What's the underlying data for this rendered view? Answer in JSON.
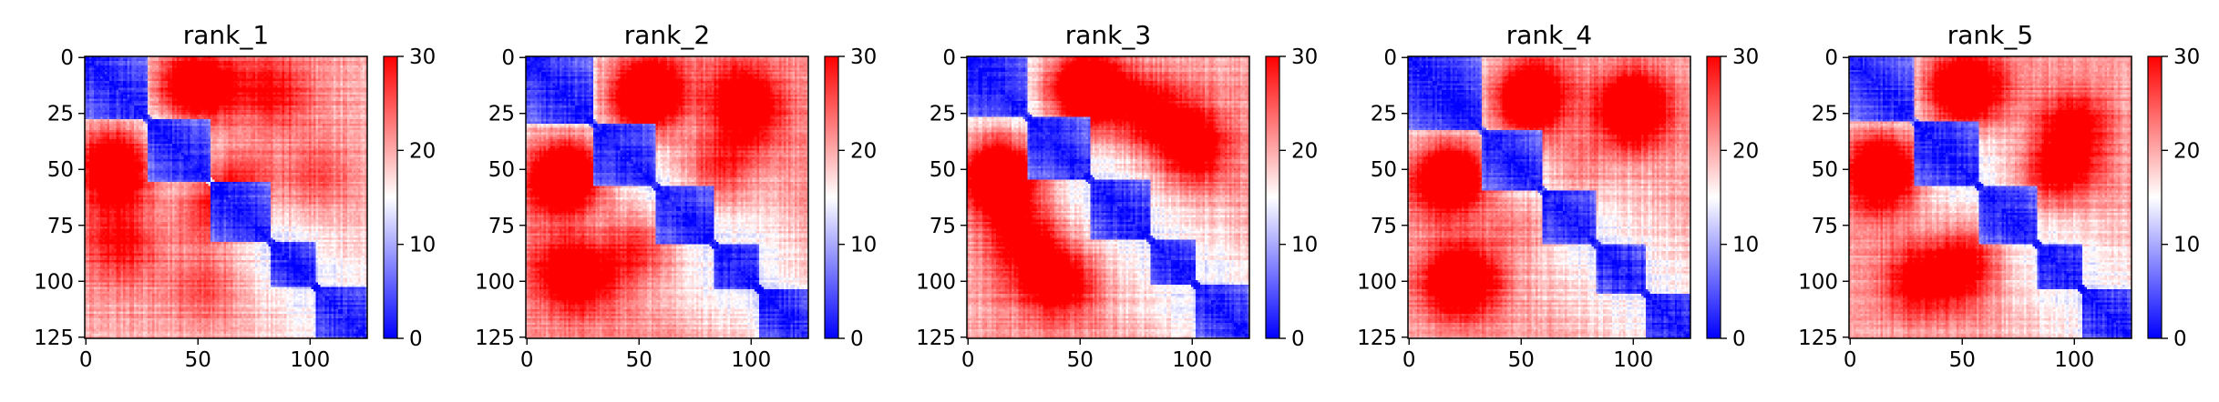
{
  "figure": {
    "type": "heatmap-grid",
    "colormap": {
      "name": "bwr",
      "low_color": "#0000ff",
      "mid_color": "#ffffff",
      "high_color": "#ff0000"
    }
  },
  "chart_data": [
    {
      "type": "heatmap",
      "title": "rank_1",
      "matrix_size": 126,
      "x_ticks": [
        "0",
        "50",
        "100"
      ],
      "x_tick_values": [
        0,
        50,
        100
      ],
      "y_ticks": [
        "0",
        "25",
        "50",
        "75",
        "100",
        "125"
      ],
      "y_tick_values": [
        0,
        25,
        50,
        75,
        100,
        125
      ],
      "xlim": [
        0,
        125
      ],
      "ylim": [
        125,
        0
      ],
      "colorbar": {
        "ticks": [
          "0",
          "10",
          "20",
          "30"
        ],
        "tick_values": [
          0,
          10,
          20,
          30
        ],
        "vmin": 0,
        "vmax": 30
      },
      "domains": [
        [
          0,
          28
        ],
        [
          28,
          56
        ],
        [
          56,
          83
        ],
        [
          83,
          103
        ],
        [
          103,
          125
        ]
      ],
      "hotspots": [
        [
          12,
          42,
          28
        ],
        [
          55,
          15,
          29
        ],
        [
          55,
          68,
          27
        ],
        [
          85,
          15,
          26
        ],
        [
          100,
          55,
          23
        ]
      ],
      "seed": 11
    },
    {
      "type": "heatmap",
      "title": "rank_2",
      "matrix_size": 126,
      "x_ticks": [
        "0",
        "50",
        "100"
      ],
      "x_tick_values": [
        0,
        50,
        100
      ],
      "y_ticks": [
        "0",
        "25",
        "50",
        "75",
        "100",
        "125"
      ],
      "y_tick_values": [
        0,
        25,
        50,
        75,
        100,
        125
      ],
      "xlim": [
        0,
        125
      ],
      "ylim": [
        125,
        0
      ],
      "colorbar": {
        "ticks": [
          "0",
          "10",
          "20",
          "30"
        ],
        "tick_values": [
          0,
          10,
          20,
          30
        ],
        "vmin": 0,
        "vmax": 30
      },
      "domains": [
        [
          0,
          30
        ],
        [
          30,
          58
        ],
        [
          58,
          84
        ],
        [
          84,
          104
        ],
        [
          104,
          125
        ]
      ],
      "hotspots": [
        [
          20,
          50,
          30
        ],
        [
          55,
          15,
          29
        ],
        [
          50,
          85,
          26
        ],
        [
          100,
          25,
          27
        ],
        [
          15,
          95,
          25
        ]
      ],
      "seed": 23
    },
    {
      "type": "heatmap",
      "title": "rank_3",
      "matrix_size": 126,
      "x_ticks": [
        "0",
        "50",
        "100"
      ],
      "x_tick_values": [
        0,
        50,
        100
      ],
      "y_ticks": [
        "0",
        "25",
        "50",
        "75",
        "100",
        "125"
      ],
      "y_tick_values": [
        0,
        25,
        50,
        75,
        100,
        125
      ],
      "xlim": [
        0,
        125
      ],
      "ylim": [
        125,
        0
      ],
      "colorbar": {
        "ticks": [
          "0",
          "10",
          "20",
          "30"
        ],
        "tick_values": [
          0,
          10,
          20,
          30
        ],
        "vmin": 0,
        "vmax": 30
      },
      "domains": [
        [
          0,
          27
        ],
        [
          27,
          55
        ],
        [
          55,
          82
        ],
        [
          82,
          102
        ],
        [
          102,
          125
        ]
      ],
      "hotspots": [
        [
          15,
          50,
          29
        ],
        [
          55,
          15,
          30
        ],
        [
          80,
          25,
          28
        ],
        [
          100,
          35,
          25
        ],
        [
          45,
          100,
          24
        ]
      ],
      "seed": 37
    },
    {
      "type": "heatmap",
      "title": "rank_4",
      "matrix_size": 126,
      "x_ticks": [
        "0",
        "50",
        "100"
      ],
      "x_tick_values": [
        0,
        50,
        100
      ],
      "y_ticks": [
        "0",
        "25",
        "50",
        "75",
        "100",
        "125"
      ],
      "y_tick_values": [
        0,
        25,
        50,
        75,
        100,
        125
      ],
      "xlim": [
        0,
        125
      ],
      "ylim": [
        125,
        0
      ],
      "colorbar": {
        "ticks": [
          "0",
          "10",
          "20",
          "30"
        ],
        "tick_values": [
          0,
          10,
          20,
          30
        ],
        "vmin": 0,
        "vmax": 30
      },
      "domains": [
        [
          0,
          33
        ],
        [
          33,
          60
        ],
        [
          60,
          84
        ],
        [
          84,
          106
        ],
        [
          106,
          125
        ]
      ],
      "hotspots": [
        [
          22,
          52,
          30
        ],
        [
          55,
          15,
          28
        ],
        [
          100,
          20,
          27
        ],
        [
          25,
          100,
          26
        ],
        [
          75,
          50,
          22
        ]
      ],
      "seed": 53
    },
    {
      "type": "heatmap",
      "title": "rank_5",
      "matrix_size": 126,
      "x_ticks": [
        "0",
        "50",
        "100"
      ],
      "x_tick_values": [
        0,
        50,
        100
      ],
      "y_ticks": [
        "0",
        "25",
        "50",
        "75",
        "100",
        "125"
      ],
      "y_tick_values": [
        0,
        25,
        50,
        75,
        100,
        125
      ],
      "xlim": [
        0,
        125
      ],
      "ylim": [
        125,
        0
      ],
      "colorbar": {
        "ticks": [
          "0",
          "10",
          "20",
          "30"
        ],
        "tick_values": [
          0,
          10,
          20,
          30
        ],
        "vmin": 0,
        "vmax": 30
      },
      "domains": [
        [
          0,
          29
        ],
        [
          29,
          58
        ],
        [
          58,
          84
        ],
        [
          84,
          104
        ],
        [
          104,
          125
        ]
      ],
      "hotspots": [
        [
          15,
          45,
          28
        ],
        [
          55,
          15,
          30
        ],
        [
          100,
          30,
          28
        ],
        [
          50,
          95,
          27
        ],
        [
          85,
          55,
          21
        ]
      ],
      "seed": 71
    }
  ]
}
